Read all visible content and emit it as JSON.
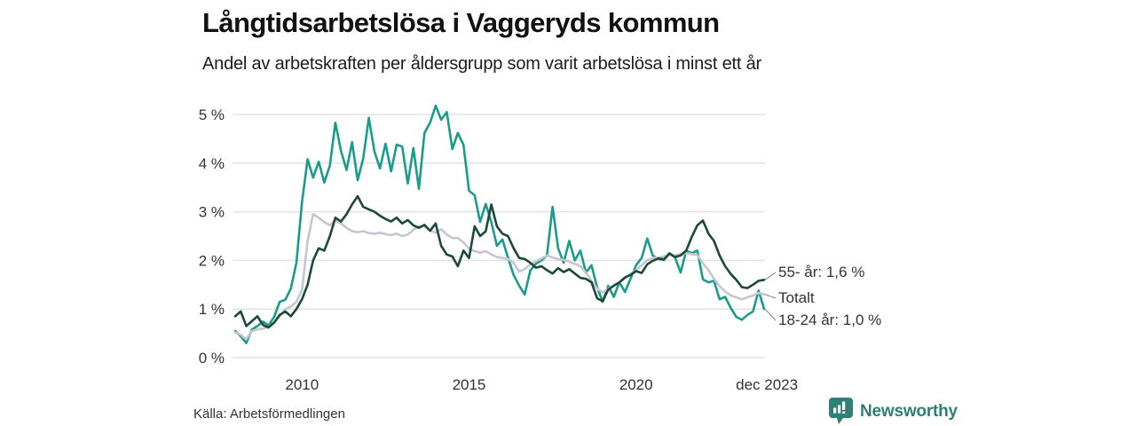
{
  "header": {
    "title": "Långtidsarbetslösa i Vaggeryds kommun",
    "subtitle": "Andel av arbetskraften per åldersgrupp som varit arbetslösa i minst ett år"
  },
  "footer": {
    "source": "Källa: Arbetsförmedlingen",
    "brand": "Newsworthy"
  },
  "colors": {
    "teal": "#1a9c8b",
    "dark_green": "#1d4939",
    "gray": "#c7c4d3",
    "grid": "#e3e3e3",
    "tick_text": "#333333",
    "leader": "#9a9a9a",
    "brand_teal": "#2f7e75"
  },
  "chart_data": {
    "type": "line",
    "title": "Långtidsarbetslösa i Vaggeryds kommun",
    "subtitle": "Andel av arbetskraften per åldersgrupp som varit arbetslösa i minst ett år",
    "unit": "%",
    "x_start_year": 2008.0,
    "x_step_months": 2,
    "x_end_label": "dec 2023",
    "ylim": [
      0,
      5.4
    ],
    "grid": true,
    "legend_position": "right-end-labels",
    "y_ticks": [
      {
        "value": 0,
        "label": "0 %"
      },
      {
        "value": 1,
        "label": "1 %"
      },
      {
        "value": 2,
        "label": "2 %"
      },
      {
        "value": 3,
        "label": "3 %"
      },
      {
        "value": 4,
        "label": "4 %"
      },
      {
        "value": 5,
        "label": "5 %"
      }
    ],
    "x_ticks": [
      {
        "year": 2010,
        "label": "2010"
      },
      {
        "year": 2015,
        "label": "2015"
      },
      {
        "year": 2020,
        "label": "2020"
      },
      {
        "year": 2023.917,
        "label": "dec 2023"
      }
    ],
    "series": [
      {
        "name": "18-24 år",
        "color": "#1a9c8b",
        "end_label": "18-24 år: 1,0 %",
        "end_value": 1.0,
        "values": [
          0.55,
          0.44,
          0.3,
          0.58,
          0.65,
          0.74,
          0.66,
          0.84,
          1.15,
          1.19,
          1.42,
          1.95,
          3.2,
          4.08,
          3.7,
          4.03,
          3.6,
          3.95,
          4.83,
          4.25,
          3.86,
          4.43,
          3.65,
          4.1,
          4.93,
          4.25,
          3.89,
          4.4,
          3.83,
          4.38,
          4.34,
          3.58,
          4.31,
          3.47,
          4.62,
          4.83,
          5.18,
          4.89,
          5.05,
          4.29,
          4.62,
          4.38,
          3.43,
          3.34,
          2.79,
          3.16,
          2.79,
          2.3,
          2.43,
          2.06,
          1.7,
          1.48,
          1.3,
          1.79,
          1.93,
          2.0,
          2.1,
          3.1,
          2.25,
          1.95,
          2.4,
          2.0,
          2.2,
          1.75,
          1.9,
          1.45,
          1.15,
          1.48,
          1.25,
          1.55,
          1.35,
          1.62,
          1.9,
          2.05,
          2.45,
          2.1,
          2.03,
          2.01,
          2.15,
          2.06,
          1.75,
          2.2,
          2.15,
          2.2,
          1.61,
          1.55,
          1.58,
          1.2,
          1.25,
          1.02,
          0.84,
          0.78,
          0.88,
          0.95,
          1.38,
          1.0
        ]
      },
      {
        "name": "Totalt",
        "color": "#c7c4d3",
        "end_label": "Totalt",
        "end_value": 1.3,
        "values": [
          0.52,
          0.47,
          0.38,
          0.55,
          0.58,
          0.6,
          0.63,
          0.72,
          0.85,
          1.0,
          1.05,
          1.15,
          1.39,
          2.4,
          2.95,
          2.88,
          2.79,
          2.72,
          2.83,
          2.76,
          2.67,
          2.6,
          2.58,
          2.6,
          2.56,
          2.55,
          2.57,
          2.54,
          2.52,
          2.55,
          2.5,
          2.53,
          2.63,
          2.7,
          2.7,
          2.61,
          2.57,
          2.64,
          2.53,
          2.46,
          2.46,
          2.37,
          2.24,
          2.19,
          2.16,
          2.19,
          2.12,
          2.07,
          2.05,
          2.03,
          1.95,
          1.77,
          1.82,
          1.92,
          1.98,
          2.04,
          2.1,
          2.06,
          2.03,
          2.01,
          1.97,
          1.93,
          1.88,
          1.75,
          1.58,
          1.42,
          1.34,
          1.42,
          1.48,
          1.55,
          1.63,
          1.72,
          1.8,
          1.9,
          2.01,
          2.05,
          2.06,
          2.08,
          2.12,
          2.1,
          2.13,
          2.15,
          2.13,
          2.11,
          1.94,
          1.8,
          1.62,
          1.47,
          1.36,
          1.28,
          1.24,
          1.2,
          1.24,
          1.28,
          1.33,
          1.3
        ]
      },
      {
        "name": "55- år",
        "color": "#1d4939",
        "end_label": "55- år: 1,6 %",
        "end_value": 1.6,
        "values": [
          0.85,
          0.95,
          0.65,
          0.75,
          0.85,
          0.67,
          0.62,
          0.72,
          0.88,
          0.95,
          0.85,
          1.0,
          1.2,
          1.5,
          2.0,
          2.25,
          2.2,
          2.5,
          2.88,
          2.8,
          2.95,
          3.15,
          3.32,
          3.1,
          3.05,
          3.0,
          2.92,
          2.85,
          2.8,
          2.88,
          2.76,
          2.83,
          2.72,
          2.67,
          2.73,
          2.61,
          2.76,
          2.3,
          2.12,
          2.08,
          1.88,
          2.2,
          2.05,
          2.7,
          2.5,
          2.6,
          3.15,
          2.7,
          2.55,
          2.5,
          2.25,
          2.05,
          2.03,
          1.95,
          1.85,
          1.88,
          1.8,
          1.73,
          1.84,
          1.76,
          1.82,
          1.73,
          1.64,
          1.62,
          1.55,
          1.22,
          1.16,
          1.4,
          1.48,
          1.55,
          1.65,
          1.7,
          1.78,
          1.74,
          1.92,
          1.99,
          2.04,
          2.02,
          2.14,
          2.07,
          2.1,
          2.2,
          2.48,
          2.72,
          2.82,
          2.55,
          2.4,
          2.1,
          1.88,
          1.72,
          1.6,
          1.45,
          1.43,
          1.5,
          1.58,
          1.6
        ]
      }
    ]
  }
}
